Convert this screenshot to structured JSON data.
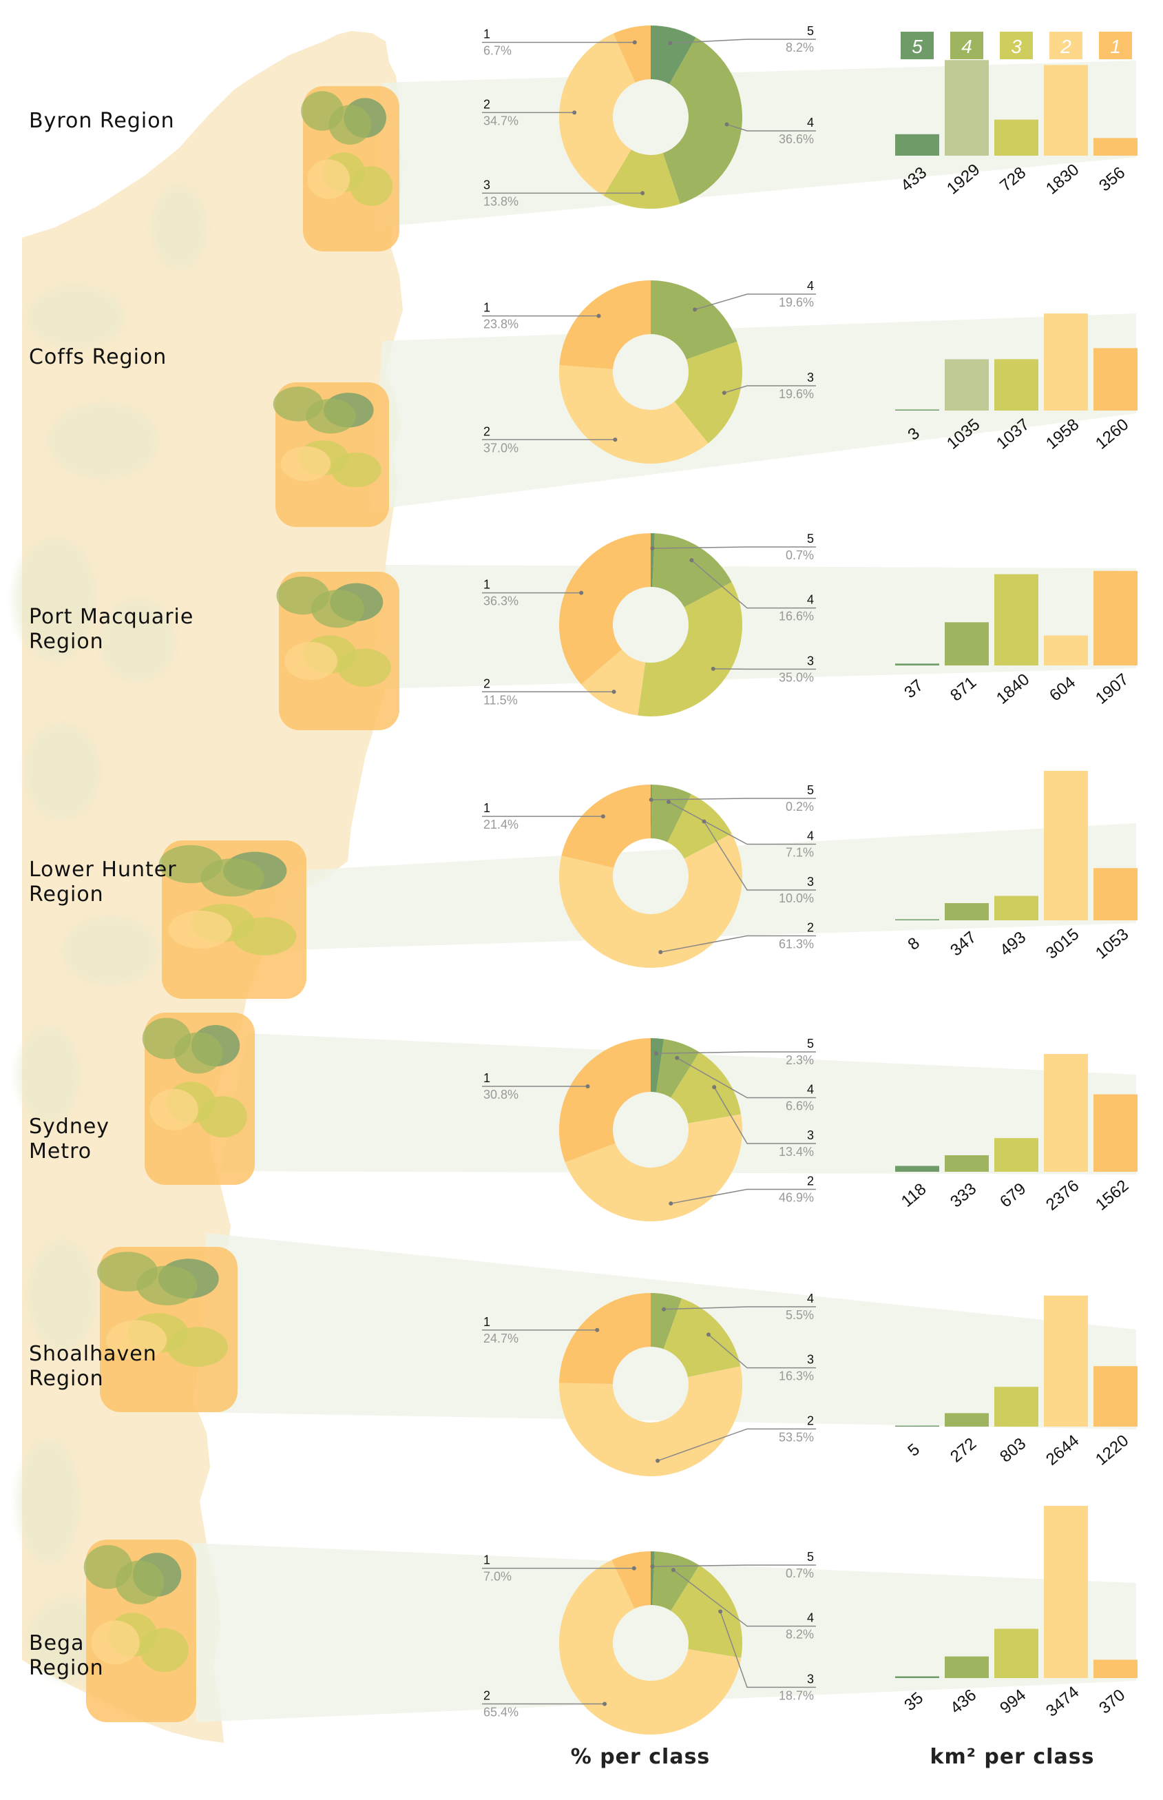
{
  "colors": {
    "class5": "#6e9b67",
    "class4": "#9fb45e",
    "class3": "#cfcd5e",
    "class2": "#fdd78a",
    "class1": "#fdc36a",
    "band": "#eef3e8",
    "map_land": "#f9ebcb",
    "map_forest": "#e7e8cc"
  },
  "legend": [
    "5",
    "4",
    "3",
    "2",
    "1"
  ],
  "footer": {
    "pie_caption": "% per class",
    "bar_caption": "km² per class"
  },
  "chart_data": [
    {
      "type": "pie",
      "region": "Byron Region",
      "classes": [
        "5",
        "4",
        "3",
        "2",
        "1"
      ],
      "percent": [
        8.2,
        36.6,
        13.8,
        34.7,
        6.7
      ],
      "percent_labels": [
        "8.2%",
        "36.6%",
        "13.8%",
        "34.7%",
        "6.7%"
      ],
      "bar_values": [
        433,
        1929,
        728,
        1830,
        356
      ]
    },
    {
      "type": "pie",
      "region": "Coffs Region",
      "classes": [
        "5",
        "4",
        "3",
        "2",
        "1"
      ],
      "percent": [
        0,
        19.6,
        19.6,
        37.0,
        23.8
      ],
      "percent_labels": [
        "",
        "19.6%",
        "19.6%",
        "37.0%",
        "23.8%"
      ],
      "bar_values": [
        3,
        1035,
        1037,
        1958,
        1260
      ]
    },
    {
      "type": "pie",
      "region": "Port Macquarie Region",
      "classes": [
        "5",
        "4",
        "3",
        "2",
        "1"
      ],
      "percent": [
        0.7,
        16.6,
        35.0,
        11.5,
        36.3
      ],
      "percent_labels": [
        "0.7%",
        "16.6%",
        "35.0%",
        "11.5%",
        "36.3%"
      ],
      "bar_values": [
        37,
        871,
        1840,
        604,
        1907
      ]
    },
    {
      "type": "pie",
      "region": "Lower Hunter Region",
      "classes": [
        "5",
        "4",
        "3",
        "2",
        "1"
      ],
      "percent": [
        0.2,
        7.1,
        10.0,
        61.3,
        21.4
      ],
      "percent_labels": [
        "0.2%",
        "7.1%",
        "10.0%",
        "61.3%",
        "21.4%"
      ],
      "bar_values": [
        8,
        347,
        493,
        3015,
        1053
      ]
    },
    {
      "type": "pie",
      "region": "Sydney Metro",
      "classes": [
        "5",
        "4",
        "3",
        "2",
        "1"
      ],
      "percent": [
        2.3,
        6.6,
        13.4,
        46.9,
        30.8
      ],
      "percent_labels": [
        "2.3%",
        "6.6%",
        "13.4%",
        "46.9%",
        "30.8%"
      ],
      "bar_values": [
        118,
        333,
        679,
        2376,
        1562
      ]
    },
    {
      "type": "pie",
      "region": "Shoalhaven Region",
      "classes": [
        "5",
        "4",
        "3",
        "2",
        "1"
      ],
      "percent": [
        0,
        5.5,
        16.3,
        53.5,
        24.7
      ],
      "percent_labels": [
        "",
        "5.5%",
        "16.3%",
        "53.5%",
        "24.7%"
      ],
      "bar_values": [
        5,
        272,
        803,
        2644,
        1220
      ]
    },
    {
      "type": "pie",
      "region": "Bega Region",
      "classes": [
        "5",
        "4",
        "3",
        "2",
        "1"
      ],
      "percent": [
        0.7,
        8.2,
        18.7,
        65.4,
        7.0
      ],
      "percent_labels": [
        "0.7%",
        "8.2%",
        "18.7%",
        "65.4%",
        "7.0%"
      ],
      "bar_values": [
        35,
        436,
        994,
        3474,
        370
      ]
    }
  ]
}
